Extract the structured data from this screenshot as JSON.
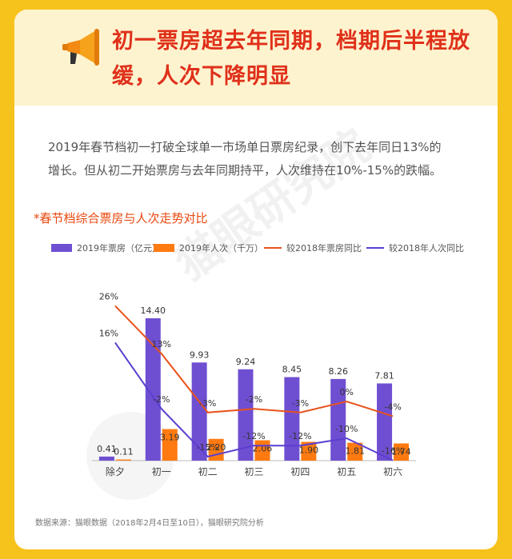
{
  "header": {
    "title_line1": "初一票房超去年同期，档期后半程放",
    "title_line2": "缓，人次下降明显",
    "icon": "megaphone-icon",
    "title_color": "#e0301a"
  },
  "description": {
    "line1": "2019年春节档初一打破全球单一市场单日票房纪录，创下去年同日13%的",
    "line2": "增长。但从初二开始票房与去年同期持平，人次维持在10%-15%的跌幅。"
  },
  "chart_title": "*春节档综合票房与人次走势对比",
  "watermark": "猫眼研究院",
  "legend": {
    "box_office": "2019年票房（亿元）",
    "admissions": "2019年人次（千万）",
    "box_office_yoy": "较2018年票房同比",
    "admissions_yoy": "较2018年人次同比"
  },
  "chart_data": {
    "type": "bar",
    "categories": [
      "除夕",
      "初一",
      "初二",
      "初三",
      "初四",
      "初五",
      "初六"
    ],
    "series": [
      {
        "name": "2019年票房（亿元）",
        "kind": "bar",
        "color": "#6f4fd1",
        "values": [
          0.41,
          14.4,
          9.93,
          9.24,
          8.45,
          8.26,
          7.81
        ],
        "labels": [
          "0.41",
          "14.40",
          "9.93",
          "9.24",
          "8.45",
          "8.26",
          "7.81"
        ]
      },
      {
        "name": "2019年人次（千万）",
        "kind": "bar",
        "color": "#ff7a10",
        "values": [
          0.11,
          3.19,
          2.2,
          2.06,
          1.9,
          1.81,
          1.74
        ],
        "labels": [
          "0.11",
          "3.19",
          "2.20",
          "2.06",
          "1.90",
          "1.81",
          "1.74"
        ]
      },
      {
        "name": "较2018年票房同比",
        "kind": "line",
        "color": "#e8531c",
        "values": [
          26,
          13,
          -3,
          -2,
          -3,
          0,
          -4
        ],
        "labels": [
          "26%",
          "13%",
          "-3%",
          "-2%",
          "-3%",
          "0%",
          "-4%"
        ]
      },
      {
        "name": "较2018年人次同比",
        "kind": "line",
        "color": "#5a3fd0",
        "values": [
          16,
          -2,
          -15,
          -12,
          -12,
          -10,
          -16
        ],
        "labels": [
          "16%",
          "-2%",
          "-15%",
          "-12%",
          "-12%",
          "-10%",
          "-16%"
        ]
      }
    ],
    "legend_position": "top",
    "grid": false
  },
  "source": "数据来源：猫眼数据（2018年2月4日至10日），猫眼研究院分析"
}
